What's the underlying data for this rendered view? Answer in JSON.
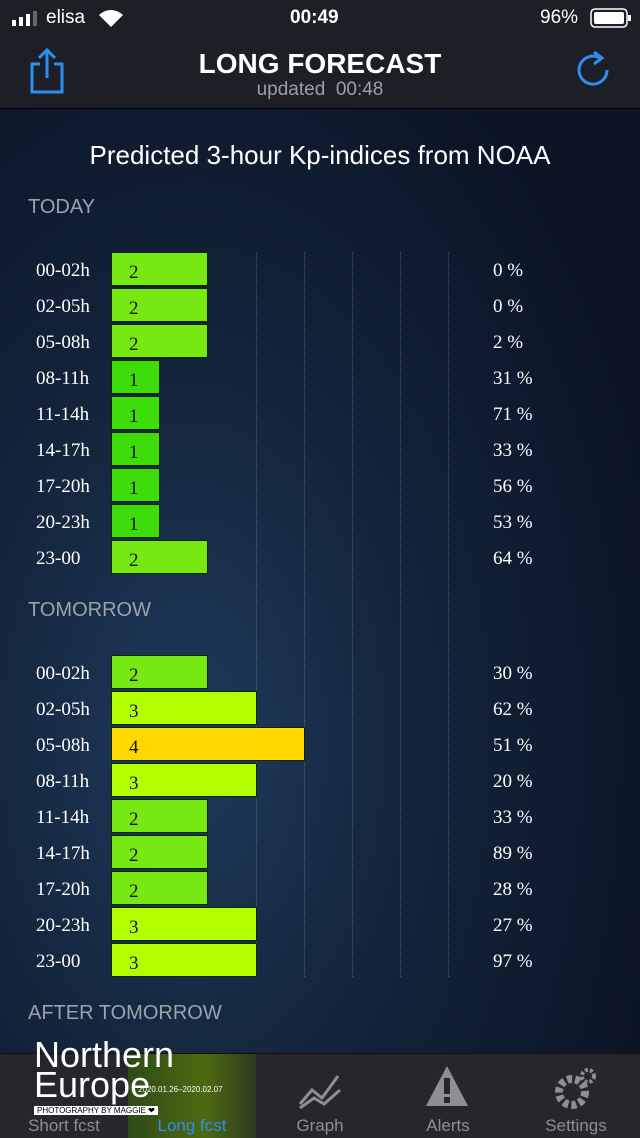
{
  "status_bar": {
    "carrier": "elisa",
    "time": "00:49",
    "battery": "96%"
  },
  "header": {
    "title": "LONG FORECAST",
    "subtitle": "updated  00:48"
  },
  "heading": "Predicted 3-hour Kp-indices from NOAA",
  "kp_colors": {
    "1": "#3fdc0c",
    "2": "#78e812",
    "3": "#b2ff00",
    "4": "#ffd800"
  },
  "sections": [
    {
      "title": "TODAY",
      "rows": [
        {
          "time": "00-02h",
          "kp": 2,
          "probability": "0 %"
        },
        {
          "time": "02-05h",
          "kp": 2,
          "probability": "0 %"
        },
        {
          "time": "05-08h",
          "kp": 2,
          "probability": "2 %"
        },
        {
          "time": "08-11h",
          "kp": 1,
          "probability": "31 %"
        },
        {
          "time": "11-14h",
          "kp": 1,
          "probability": "71 %"
        },
        {
          "time": "14-17h",
          "kp": 1,
          "probability": "33 %"
        },
        {
          "time": "17-20h",
          "kp": 1,
          "probability": "56 %"
        },
        {
          "time": "20-23h",
          "kp": 1,
          "probability": "53 %"
        },
        {
          "time": "23-00",
          "kp": 2,
          "probability": "64 %"
        }
      ]
    },
    {
      "title": "TOMORROW",
      "rows": [
        {
          "time": "00-02h",
          "kp": 2,
          "probability": "30 %"
        },
        {
          "time": "02-05h",
          "kp": 3,
          "probability": "62 %"
        },
        {
          "time": "05-08h",
          "kp": 4,
          "probability": "51 %"
        },
        {
          "time": "08-11h",
          "kp": 3,
          "probability": "20 %"
        },
        {
          "time": "11-14h",
          "kp": 2,
          "probability": "33 %"
        },
        {
          "time": "14-17h",
          "kp": 2,
          "probability": "89 %"
        },
        {
          "time": "17-20h",
          "kp": 2,
          "probability": "28 %"
        },
        {
          "time": "20-23h",
          "kp": 3,
          "probability": "27 %"
        },
        {
          "time": "23-00",
          "kp": 3,
          "probability": "97 %"
        }
      ]
    },
    {
      "title": "AFTER TOMORROW"
    }
  ],
  "watermark": {
    "line1": "Northern",
    "line2": "Europe",
    "dates": "2020.01.26–2020.02.07",
    "credit": "PHOTOGRAPHY BY MAGGIE ❤"
  },
  "tabs": [
    "Short fcst",
    "Long fcst",
    "Graph",
    "Alerts",
    "Settings"
  ]
}
